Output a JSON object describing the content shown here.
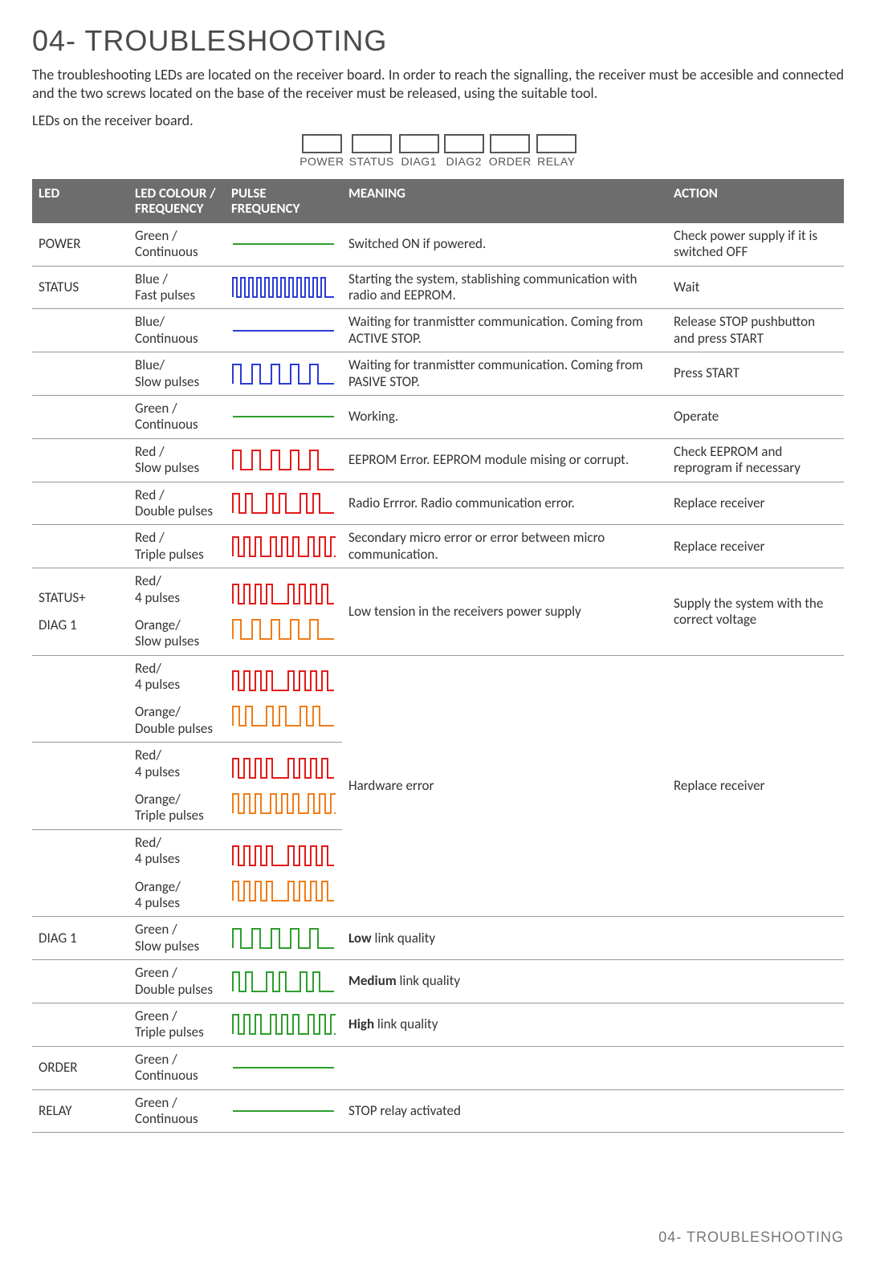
{
  "title": "04- TROUBLESHOOTING",
  "intro": "The troubleshooting LEDs are located on the receiver board. In order to reach the signalling, the receiver must be accesible and connected and the two screws located on the base of the receiver must be released, using the suitable tool.",
  "sub": "LEDs on the receiver board.",
  "ledLabels": [
    "POWER",
    "STATUS",
    "DIAG1",
    "DIAG2",
    "ORDER",
    "RELAY"
  ],
  "columns": {
    "led": "LED",
    "colour": "LED COLOUR / FREQUENCY",
    "pulse": "PULSE FREQUENCY",
    "meaning": "MEANING",
    "action": "ACTION"
  },
  "colors": {
    "green": "#2e9e2e",
    "blue": "#2a3bd8",
    "red": "#e41a1a",
    "orange": "#f07d1a"
  },
  "pulseSvg": {
    "width": 130,
    "height": 30,
    "stroke": 2
  },
  "rows": [
    {
      "led": "POWER",
      "cf": "Green /\nContinuous",
      "p": {
        "type": "continuous",
        "c": "green"
      },
      "meaning": "Switched ON if powered.",
      "action": "Check power supply if it is switched OFF",
      "split": false
    },
    {
      "led": "STATUS",
      "cf": "Blue /\nFast pulses",
      "p": {
        "type": "fast",
        "c": "blue"
      },
      "meaning": "Starting the system, stablishing communication with radio and EEPROM.",
      "action": "Wait"
    },
    {
      "led": "",
      "cf": "Blue/\nContinuous",
      "p": {
        "type": "continuous",
        "c": "blue"
      },
      "meaning": "Waiting for tranmistter communication. Coming from ACTIVE STOP.",
      "action": "Release STOP pushbutton and press START"
    },
    {
      "led": "",
      "cf": "Blue/\nSlow pulses",
      "p": {
        "type": "slow",
        "c": "blue"
      },
      "meaning": "Waiting for tranmistter communication. Coming from PASIVE STOP.",
      "action": "Press START"
    },
    {
      "led": "",
      "cf": "Green /\nContinuous",
      "p": {
        "type": "continuous",
        "c": "green"
      },
      "meaning": "Working.",
      "action": "Operate"
    },
    {
      "led": "",
      "cf": "Red /\nSlow pulses",
      "p": {
        "type": "slow",
        "c": "red"
      },
      "meaning": "EEPROM Error. EEPROM module mising or corrupt.",
      "action": "Check EEPROM and reprogram if necessary"
    },
    {
      "led": "",
      "cf": "Red /\nDouble pulses",
      "p": {
        "type": "double",
        "c": "red"
      },
      "meaning": "Radio Errror. Radio communication error.",
      "action": "Replace receiver"
    },
    {
      "led": "",
      "cf": "Red /\nTriple pulses",
      "p": {
        "type": "triple",
        "c": "red"
      },
      "meaning": "Secondary micro error or error between micro communication.",
      "action": "Replace receiver"
    }
  ],
  "combo1": {
    "led1": "STATUS+",
    "led2": "DIAG 1",
    "cf1": "Red/\n4 pulses",
    "cf2": "Orange/\nSlow pulses",
    "p1": {
      "type": "quad",
      "c": "red"
    },
    "p2": {
      "type": "slow",
      "c": "orange"
    },
    "meaning": "Low tension in the receivers power supply",
    "action": "Supply the system with the correct voltage"
  },
  "hwGroup": {
    "meaning": "Hardware error",
    "action": "Replace receiver",
    "rows": [
      {
        "cf1": "Red/\n4 pulses",
        "cf2": "Orange/\nDouble pulses",
        "p1": {
          "type": "quad",
          "c": "red"
        },
        "p2": {
          "type": "double",
          "c": "orange"
        }
      },
      {
        "cf1": "Red/\n4 pulses",
        "cf2": "Orange/\nTriple pulses",
        "p1": {
          "type": "quad",
          "c": "red"
        },
        "p2": {
          "type": "triple",
          "c": "orange"
        }
      },
      {
        "cf1": "Red/\n4 pulses",
        "cf2": "Orange/\n4 pulses",
        "p1": {
          "type": "quad",
          "c": "red"
        },
        "p2": {
          "type": "quad",
          "c": "orange"
        }
      }
    ]
  },
  "linkRows": [
    {
      "led": "DIAG 1",
      "cf": "Green /\nSlow pulses",
      "p": {
        "type": "slow",
        "c": "green"
      },
      "bold": "Low",
      "rest": " link quality"
    },
    {
      "led": "",
      "cf": "Green /\nDouble pulses",
      "p": {
        "type": "double",
        "c": "green"
      },
      "bold": "Medium",
      "rest": " link quality"
    },
    {
      "led": "",
      "cf": "Green /\nTriple pulses",
      "p": {
        "type": "triple",
        "c": "green"
      },
      "bold": "High",
      "rest": " link quality"
    }
  ],
  "tailRows": [
    {
      "led": "ORDER",
      "cf": "Green /\nContinuous",
      "p": {
        "type": "continuous",
        "c": "green"
      },
      "meaning": "",
      "action": ""
    },
    {
      "led": "RELAY",
      "cf": "Green /\nContinuous",
      "p": {
        "type": "continuous",
        "c": "green"
      },
      "meaning": "STOP relay activated",
      "action": ""
    }
  ],
  "footer": "04- TROUBLESHOOTING"
}
